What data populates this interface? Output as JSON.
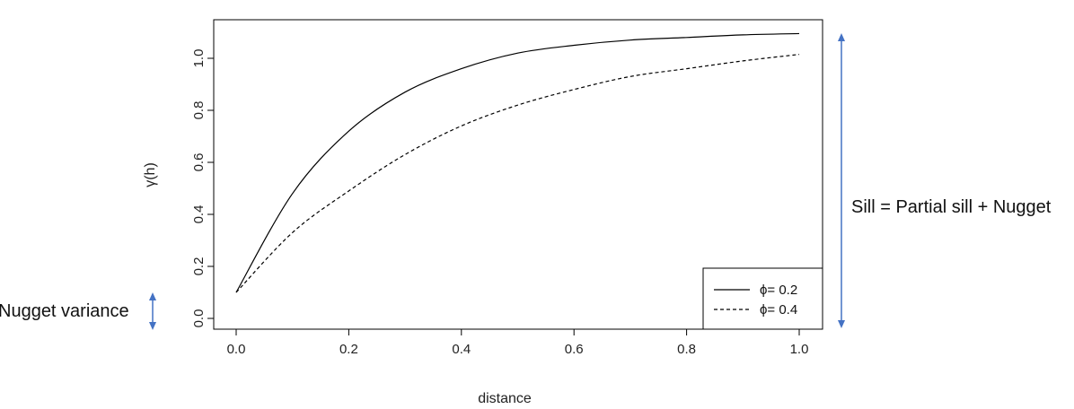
{
  "chart_data": {
    "type": "line",
    "xlabel": "distance",
    "ylabel": "γ(h)",
    "xlim": [
      0.0,
      1.0
    ],
    "ylim": [
      0.0,
      1.1
    ],
    "x_ticks": [
      "0.0",
      "0.2",
      "0.4",
      "0.6",
      "0.8",
      "1.0"
    ],
    "y_ticks": [
      "0.0",
      "0.2",
      "0.4",
      "0.6",
      "0.8",
      "1.0"
    ],
    "grid": false,
    "legend_position": "bottom-right",
    "x": [
      0.0,
      0.1,
      0.2,
      0.3,
      0.4,
      0.5,
      0.6,
      0.7,
      0.8,
      0.9,
      1.0
    ],
    "series": [
      {
        "name": "ϕ= 0.2",
        "line_style": "solid",
        "values": [
          0.1,
          0.48,
          0.72,
          0.87,
          0.96,
          1.02,
          1.05,
          1.07,
          1.08,
          1.09,
          1.095
        ]
      },
      {
        "name": "ϕ= 0.4",
        "line_style": "dashed",
        "values": [
          0.1,
          0.33,
          0.49,
          0.63,
          0.74,
          0.82,
          0.88,
          0.93,
          0.96,
          0.99,
          1.015
        ]
      }
    ],
    "annotations": {
      "nugget_label": "Nugget variance",
      "sill_label": "Sill = Partial sill + Nugget"
    },
    "arrow_color": "#4472c4",
    "line_color": "#000000"
  }
}
